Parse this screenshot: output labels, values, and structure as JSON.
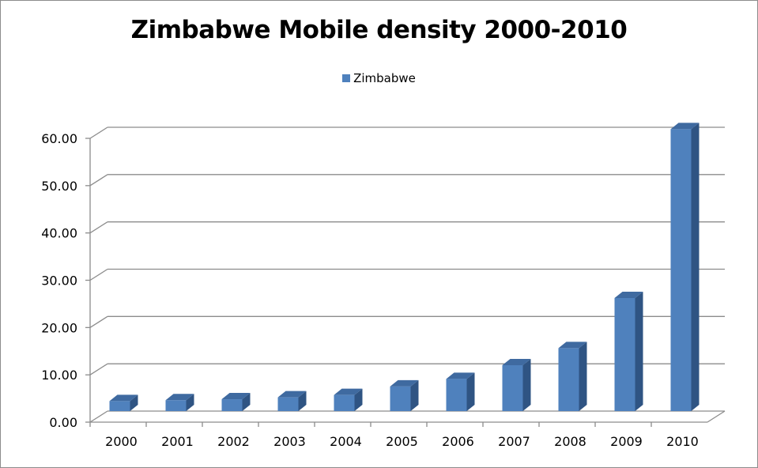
{
  "chart_data": {
    "type": "bar",
    "title": "Zimbabwe Mobile density 2000-2010",
    "categories": [
      "2000",
      "2001",
      "2002",
      "2003",
      "2004",
      "2005",
      "2006",
      "2007",
      "2008",
      "2009",
      "2010"
    ],
    "series": [
      {
        "name": "Zimbabwe",
        "values": [
          2.1,
          2.3,
          2.5,
          2.9,
          3.4,
          5.2,
          6.8,
          9.7,
          13.3,
          23.9,
          59.6
        ],
        "color": "#4f81bd"
      }
    ],
    "ylim": [
      0,
      60
    ],
    "yticks": [
      "0.00",
      "10.00",
      "20.00",
      "30.00",
      "40.00",
      "50.00",
      "60.00"
    ],
    "xlabel": "",
    "ylabel": "",
    "grid": true,
    "legend_position": "top"
  }
}
